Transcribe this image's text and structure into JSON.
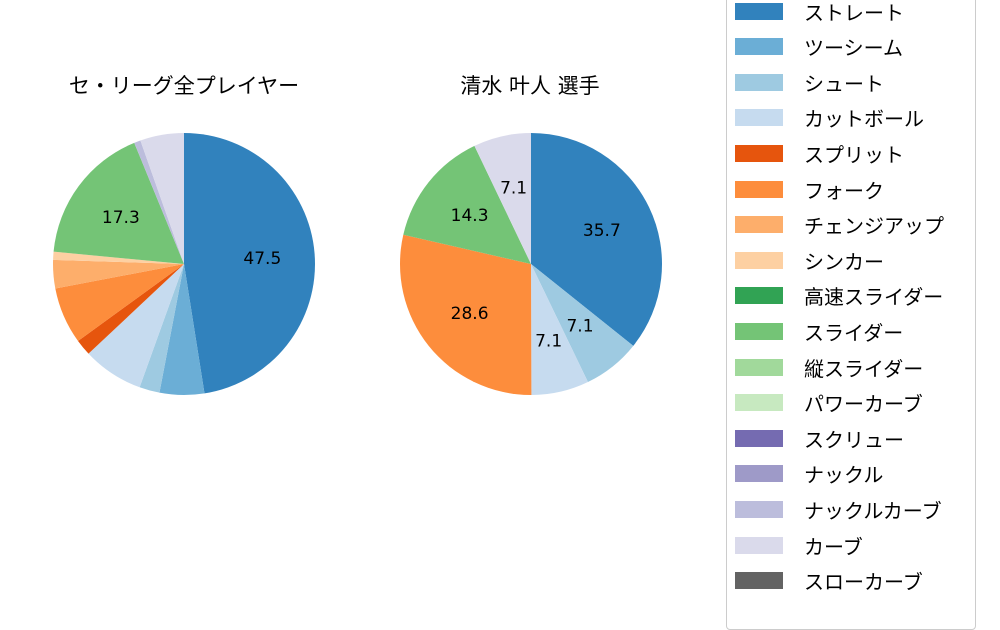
{
  "chart_data": [
    {
      "type": "pie",
      "title": "セ・リーグ全プレイヤー",
      "categories": [
        "ストレート",
        "ツーシーム",
        "シュート",
        "カットボール",
        "スプリット",
        "フォーク",
        "チェンジアップ",
        "シンカー",
        "スライダー",
        "ナックルカーブ",
        "カーブ"
      ],
      "values": [
        47.5,
        5.5,
        2.5,
        7.5,
        2.0,
        7.0,
        3.5,
        1.0,
        17.3,
        0.8,
        5.4
      ],
      "colors": [
        "#3182bd",
        "#6baed6",
        "#9ecae1",
        "#c6dbef",
        "#e6550d",
        "#fd8d3c",
        "#fdae6b",
        "#fdd0a2",
        "#74c476",
        "#bcbddc",
        "#dadaeb"
      ],
      "labels_shown": [
        "47.5",
        "",
        "",
        "",
        "",
        "",
        "",
        "",
        "17.3",
        "",
        ""
      ],
      "startangle": 90,
      "direction": "clockwise"
    },
    {
      "type": "pie",
      "title": "清水 叶人  選手",
      "categories": [
        "ストレート",
        "シュート",
        "カットボール",
        "フォーク",
        "スライダー",
        "カーブ"
      ],
      "values": [
        35.7,
        7.1,
        7.1,
        28.6,
        14.3,
        7.1
      ],
      "colors": [
        "#3182bd",
        "#9ecae1",
        "#c6dbef",
        "#fd8d3c",
        "#74c476",
        "#dadaeb"
      ],
      "labels_shown": [
        "35.7",
        "7.1",
        "7.1",
        "28.6",
        "14.3",
        "7.1"
      ],
      "startangle": 90,
      "direction": "clockwise"
    }
  ],
  "titles": {
    "left": "セ・リーグ全プレイヤー",
    "right": "清水 叶人  選手"
  },
  "legend": {
    "position": "right",
    "items": [
      {
        "label": "ストレート",
        "color": "#3182bd"
      },
      {
        "label": "ツーシーム",
        "color": "#6baed6"
      },
      {
        "label": "シュート",
        "color": "#9ecae1"
      },
      {
        "label": "カットボール",
        "color": "#c6dbef"
      },
      {
        "label": "スプリット",
        "color": "#e6550d"
      },
      {
        "label": "フォーク",
        "color": "#fd8d3c"
      },
      {
        "label": "チェンジアップ",
        "color": "#fdae6b"
      },
      {
        "label": "シンカー",
        "color": "#fdd0a2"
      },
      {
        "label": "高速スライダー",
        "color": "#31a354"
      },
      {
        "label": "スライダー",
        "color": "#74c476"
      },
      {
        "label": "縦スライダー",
        "color": "#a1d99b"
      },
      {
        "label": "パワーカーブ",
        "color": "#c7e9c0"
      },
      {
        "label": "スクリュー",
        "color": "#756bb1"
      },
      {
        "label": "ナックル",
        "color": "#9e9ac8"
      },
      {
        "label": "ナックルカーブ",
        "color": "#bcbddc"
      },
      {
        "label": "カーブ",
        "color": "#dadaeb"
      },
      {
        "label": "スローカーブ",
        "color": "#636363"
      }
    ]
  }
}
